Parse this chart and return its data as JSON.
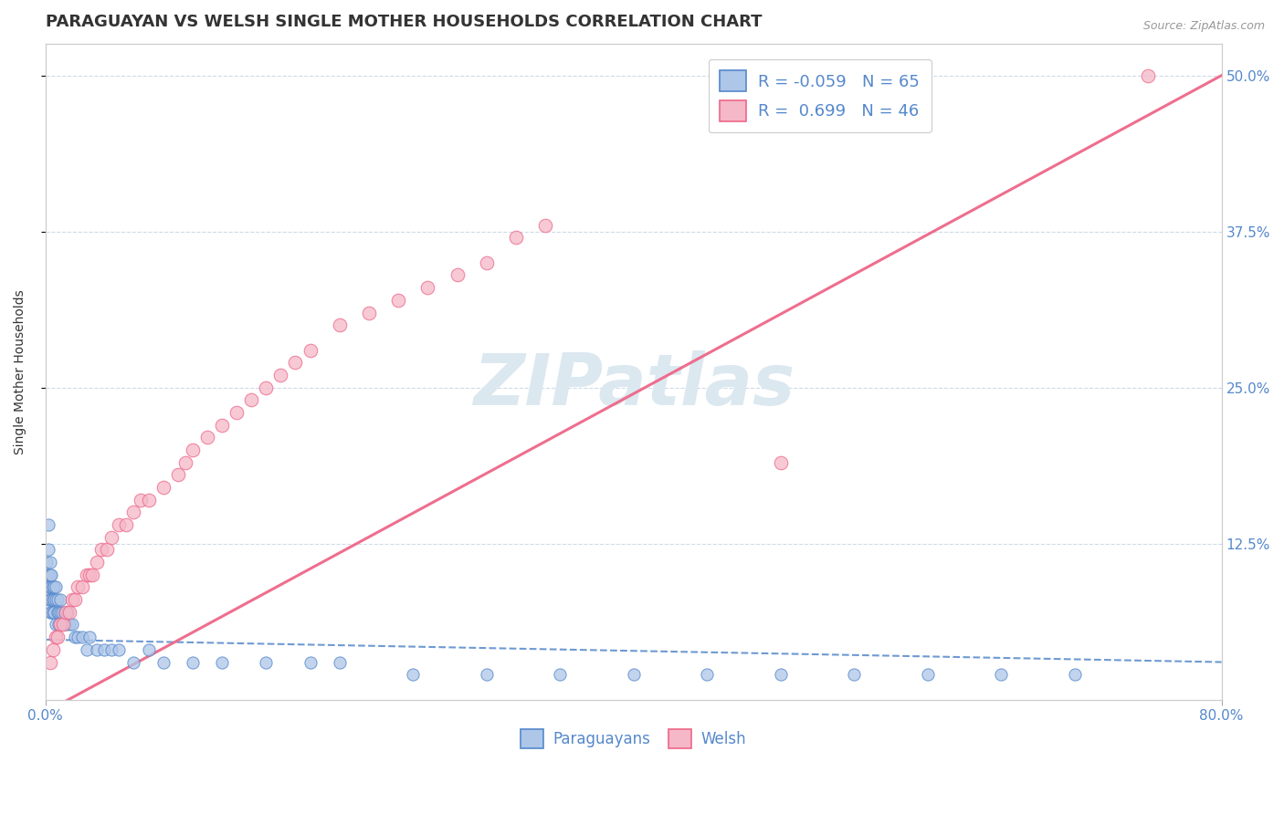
{
  "title": "PARAGUAYAN VS WELSH SINGLE MOTHER HOUSEHOLDS CORRELATION CHART",
  "source": "Source: ZipAtlas.com",
  "ylabel": "Single Mother Households",
  "right_yticks": [
    "50.0%",
    "37.5%",
    "25.0%",
    "12.5%"
  ],
  "right_ytick_vals": [
    0.5,
    0.375,
    0.25,
    0.125
  ],
  "legend_paraguayan": "R = -0.059   N = 65",
  "legend_welsh": "R =  0.699   N = 46",
  "legend_label1": "Paraguayans",
  "legend_label2": "Welsh",
  "paraguayan_color": "#aec6e8",
  "welsh_color": "#f5b8c8",
  "paraguayan_line_color": "#5588cc",
  "welsh_line_color": "#ee6688",
  "watermark": "ZIPatlas",
  "watermark_color": "#dce8f0",
  "background_color": "#ffffff",
  "xlim": [
    0.0,
    0.8
  ],
  "ylim": [
    0.0,
    0.525
  ],
  "title_color": "#333333",
  "axis_color": "#5588cc",
  "grid_color": "#c8d8e8",
  "title_fontsize": 13,
  "axis_label_fontsize": 10,
  "tick_fontsize": 11,
  "par_x": [
    0.001,
    0.001,
    0.002,
    0.002,
    0.002,
    0.002,
    0.002,
    0.003,
    0.003,
    0.003,
    0.003,
    0.003,
    0.004,
    0.004,
    0.004,
    0.004,
    0.005,
    0.005,
    0.005,
    0.006,
    0.006,
    0.006,
    0.007,
    0.007,
    0.007,
    0.008,
    0.008,
    0.009,
    0.009,
    0.01,
    0.01,
    0.011,
    0.012,
    0.013,
    0.014,
    0.015,
    0.016,
    0.018,
    0.02,
    0.022,
    0.025,
    0.028,
    0.03,
    0.035,
    0.04,
    0.045,
    0.05,
    0.06,
    0.07,
    0.08,
    0.1,
    0.12,
    0.15,
    0.18,
    0.2,
    0.25,
    0.3,
    0.35,
    0.4,
    0.45,
    0.5,
    0.55,
    0.6,
    0.65,
    0.7
  ],
  "par_y": [
    0.1,
    0.11,
    0.14,
    0.09,
    0.1,
    0.08,
    0.12,
    0.09,
    0.11,
    0.08,
    0.1,
    0.07,
    0.09,
    0.08,
    0.1,
    0.07,
    0.08,
    0.09,
    0.07,
    0.09,
    0.08,
    0.07,
    0.08,
    0.06,
    0.09,
    0.07,
    0.08,
    0.07,
    0.06,
    0.07,
    0.08,
    0.07,
    0.06,
    0.07,
    0.06,
    0.07,
    0.06,
    0.06,
    0.05,
    0.05,
    0.05,
    0.04,
    0.05,
    0.04,
    0.04,
    0.04,
    0.04,
    0.03,
    0.04,
    0.03,
    0.03,
    0.03,
    0.03,
    0.03,
    0.03,
    0.02,
    0.02,
    0.02,
    0.02,
    0.02,
    0.02,
    0.02,
    0.02,
    0.02,
    0.02
  ],
  "welsh_x": [
    0.003,
    0.005,
    0.007,
    0.008,
    0.01,
    0.012,
    0.014,
    0.016,
    0.018,
    0.02,
    0.022,
    0.025,
    0.028,
    0.03,
    0.032,
    0.035,
    0.038,
    0.042,
    0.045,
    0.05,
    0.055,
    0.06,
    0.065,
    0.07,
    0.08,
    0.09,
    0.095,
    0.1,
    0.11,
    0.12,
    0.13,
    0.14,
    0.15,
    0.16,
    0.17,
    0.18,
    0.2,
    0.22,
    0.24,
    0.26,
    0.28,
    0.3,
    0.32,
    0.34,
    0.5,
    0.75
  ],
  "welsh_y": [
    0.03,
    0.04,
    0.05,
    0.05,
    0.06,
    0.06,
    0.07,
    0.07,
    0.08,
    0.08,
    0.09,
    0.09,
    0.1,
    0.1,
    0.1,
    0.11,
    0.12,
    0.12,
    0.13,
    0.14,
    0.14,
    0.15,
    0.16,
    0.16,
    0.17,
    0.18,
    0.19,
    0.2,
    0.21,
    0.22,
    0.23,
    0.24,
    0.25,
    0.26,
    0.27,
    0.28,
    0.3,
    0.31,
    0.32,
    0.33,
    0.34,
    0.35,
    0.37,
    0.38,
    0.19,
    0.5
  ],
  "welsh_line_x0": 0.0,
  "welsh_line_y0": -0.01,
  "welsh_line_x1": 0.8,
  "welsh_line_y1": 0.5,
  "par_line_x0": 0.0,
  "par_line_y0": 0.048,
  "par_line_x1": 0.8,
  "par_line_y1": 0.03
}
